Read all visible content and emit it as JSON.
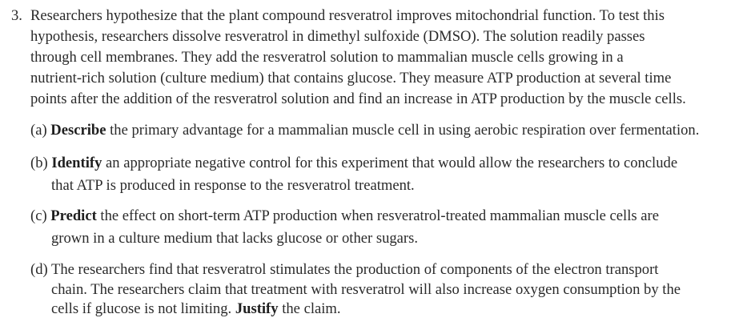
{
  "question": {
    "number": "3.",
    "stem_lines": [
      "Researchers hypothesize that the plant compound resveratrol improves mitochondrial function. To test this",
      "hypothesis, researchers dissolve resveratrol in dimethyl sulfoxide (DMSO). The solution readily passes",
      "through cell membranes. They add the resveratrol solution to mammalian muscle cells growing in a",
      "nutrient-rich solution (culture medium) that contains glucose. They measure ATP production at several time",
      "points after the addition of the resveratrol solution and find an increase in ATP production by the muscle cells."
    ],
    "parts": [
      {
        "label": "(a)",
        "lines": [
          {
            "pre": "",
            "bold": "Describe",
            "post": " the primary advantage for a mammalian muscle cell in using aerobic respiration over fermentation."
          }
        ]
      },
      {
        "label": "(b)",
        "lines": [
          {
            "pre": "",
            "bold": "Identify",
            "post": " an appropriate negative control for this experiment that would allow the researchers to conclude"
          },
          {
            "pre": "that ATP is produced in response to the resveratrol treatment.",
            "bold": "",
            "post": ""
          }
        ]
      },
      {
        "label": "(c)",
        "lines": [
          {
            "pre": "",
            "bold": "Predict",
            "post": " the effect on short-term ATP production when resveratrol-treated mammalian muscle cells are"
          },
          {
            "pre": "grown in a culture medium that lacks glucose or other sugars.",
            "bold": "",
            "post": ""
          }
        ]
      },
      {
        "label": "(d)",
        "lines": [
          {
            "pre": "The researchers find that resveratrol stimulates the production of components of the electron transport",
            "bold": "",
            "post": ""
          },
          {
            "pre": "chain. The researchers claim that treatment with resveratrol will also increase oxygen consumption by the",
            "bold": "",
            "post": ""
          },
          {
            "pre": "cells if glucose is not limiting. ",
            "bold": "Justify",
            "post": " the claim."
          }
        ]
      }
    ]
  }
}
